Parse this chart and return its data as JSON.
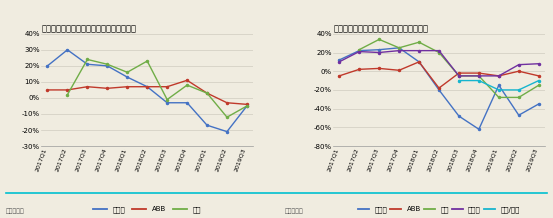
{
  "title_left": "图表：自动化巨头机器人收入增速边际改善",
  "title_right": "图表：自动化巨头中国区收入增速边际改善",
  "source": "来源：彭博",
  "x_labels": [
    "2017Q1",
    "2017Q2",
    "2017Q3",
    "2017Q4",
    "2018Q1",
    "2018Q2",
    "2018Q3",
    "2018Q4",
    "2019Q1",
    "2019Q2",
    "2019Q3"
  ],
  "left_fanuc": [
    20,
    30,
    21,
    20,
    13,
    7,
    -3,
    -3,
    -17,
    -21,
    -5
  ],
  "left_abb": [
    5,
    5,
    7,
    6,
    7,
    7,
    7,
    11,
    3,
    -3,
    -4
  ],
  "left_yaskawa": [
    null,
    2,
    24,
    21,
    16,
    23,
    -1,
    8,
    3,
    -12,
    -5
  ],
  "right_fanuc": [
    12,
    22,
    23,
    25,
    10,
    -20,
    -48,
    -62,
    -15,
    -47,
    -35
  ],
  "right_abb": [
    -5,
    2,
    3,
    1,
    10,
    -18,
    -2,
    -2,
    -5,
    0,
    -5
  ],
  "right_yaskawa": [
    null,
    23,
    34,
    25,
    31,
    20,
    -5,
    -5,
    -28,
    -28,
    -15
  ],
  "right_nidec": [
    10,
    21,
    20,
    22,
    22,
    22,
    -5,
    -5,
    -5,
    7,
    8
  ],
  "right_mitsubishi": [
    null,
    null,
    null,
    null,
    null,
    null,
    -10,
    -10,
    -20,
    -20,
    -10
  ],
  "color_fanuc": "#4472c4",
  "color_abb": "#c0392b",
  "color_yaskawa": "#70ad47",
  "color_nidec": "#7030a0",
  "color_mitsubishi": "#17b5ce",
  "bg_color": "#f0ece0",
  "grid_color": "#d0ccc0",
  "legend_fanuc": "发那科",
  "legend_abb": "ABB",
  "legend_yaskawa": "安川",
  "legend_nidec": "尼得子",
  "legend_mitsubishi": "松下/三菱",
  "ylim_left": [
    -30,
    40
  ],
  "ylim_right": [
    -80,
    40
  ],
  "yticks_left": [
    -30,
    -20,
    -10,
    0,
    10,
    20,
    30,
    40
  ],
  "yticks_right": [
    -80,
    -60,
    -40,
    -20,
    0,
    20,
    40
  ],
  "title_fontsize": 6.0,
  "tick_fontsize": 5.0,
  "legend_fontsize": 5.0
}
